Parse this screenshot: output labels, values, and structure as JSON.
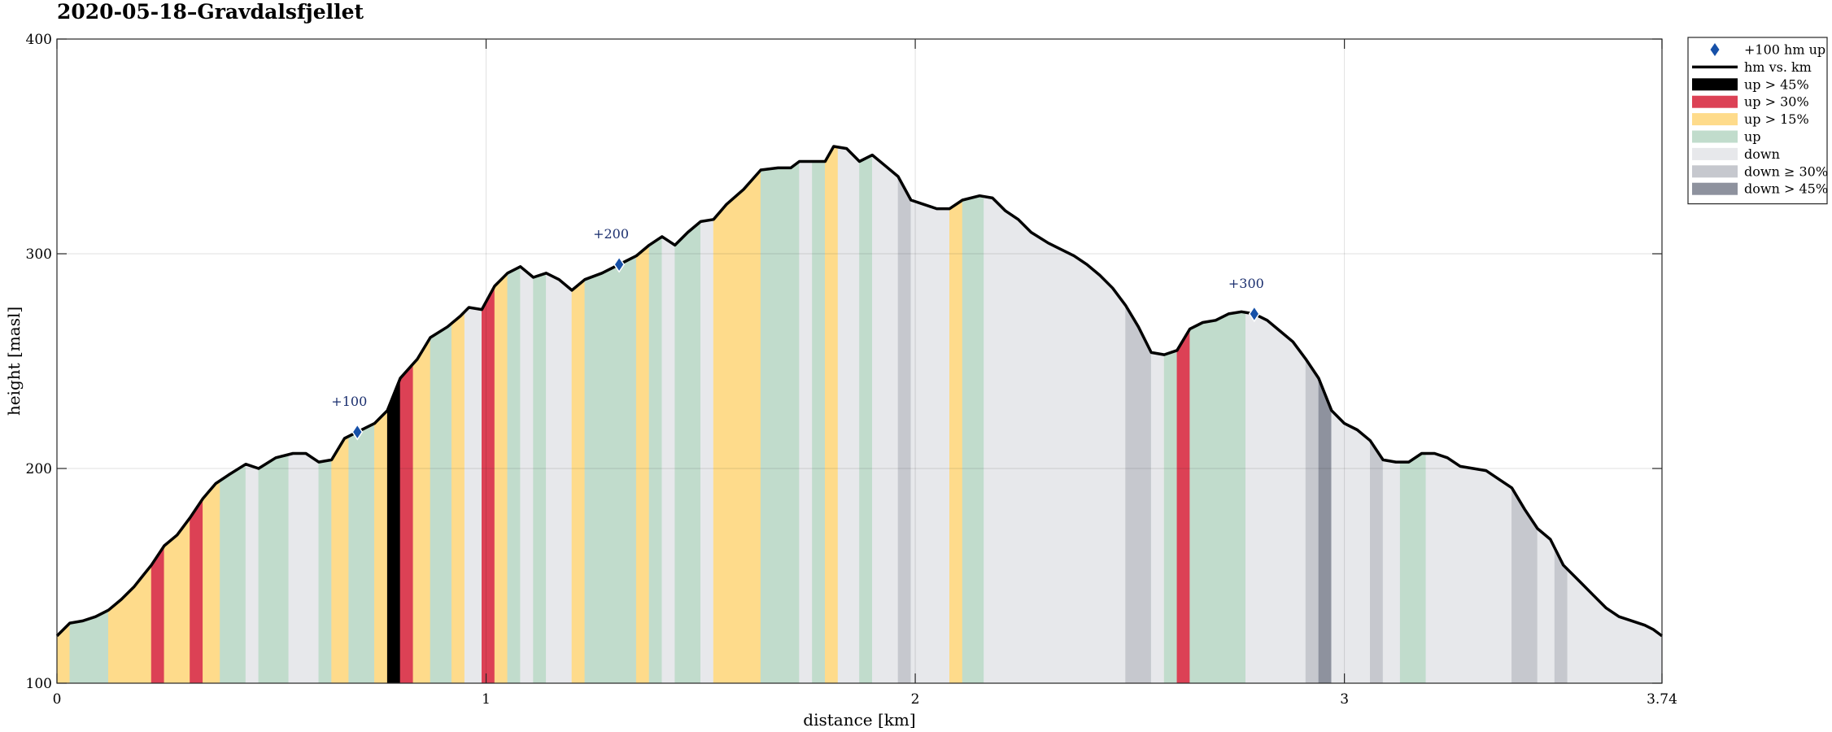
{
  "chart_data": {
    "type": "area",
    "title": "2020-05-18–Gravdalsfjellet",
    "xlabel": "distance [km]",
    "ylabel": "height [masl]",
    "xlim": [
      0,
      3.74
    ],
    "ylim": [
      100,
      400
    ],
    "x_ticks": [
      0,
      1,
      2,
      3,
      3.74
    ],
    "x_tick_labels": [
      "0",
      "1",
      "2",
      "3",
      "3.74"
    ],
    "y_ticks": [
      100,
      200,
      300,
      400
    ],
    "y_tick_labels": [
      "100",
      "200",
      "300",
      "400"
    ],
    "grid": true,
    "legend_position": "outside-top-right",
    "colors": {
      "up_gt45": "#000000",
      "up_gt30": "#dc4155",
      "up_gt15": "#fedb8b",
      "up": "#c1dccc",
      "down": "#e7e8eb",
      "down_ge30": "#c6c8ce",
      "down_gt45": "#8e929e",
      "line": "#000000",
      "marker": "#1650a8"
    },
    "legend": [
      {
        "key": "marker",
        "label": "+100 hm up"
      },
      {
        "key": "line",
        "label": "hm vs. km"
      },
      {
        "key": "up_gt45",
        "label": "up > 45%"
      },
      {
        "key": "up_gt30",
        "label": "up > 30%"
      },
      {
        "key": "up_gt15",
        "label": "up > 15%"
      },
      {
        "key": "up",
        "label": "up"
      },
      {
        "key": "down",
        "label": "down"
      },
      {
        "key": "down_ge30",
        "label": "down ≥ 30%"
      },
      {
        "key": "down_gt45",
        "label": "down > 45%"
      }
    ],
    "profile": [
      [
        0,
        122
      ],
      [
        0.03,
        128
      ],
      [
        0.06,
        129
      ],
      [
        0.09,
        131
      ],
      [
        0.12,
        134
      ],
      [
        0.15,
        139
      ],
      [
        0.18,
        145
      ],
      [
        0.2,
        150
      ],
      [
        0.22,
        155
      ],
      [
        0.25,
        164
      ],
      [
        0.28,
        169
      ],
      [
        0.31,
        177
      ],
      [
        0.34,
        186
      ],
      [
        0.37,
        193
      ],
      [
        0.4,
        197
      ],
      [
        0.44,
        202
      ],
      [
        0.47,
        200
      ],
      [
        0.51,
        205
      ],
      [
        0.55,
        207
      ],
      [
        0.58,
        207
      ],
      [
        0.61,
        203
      ],
      [
        0.64,
        204
      ],
      [
        0.67,
        214
      ],
      [
        0.7,
        217
      ],
      [
        0.74,
        221
      ],
      [
        0.77,
        227
      ],
      [
        0.8,
        242
      ],
      [
        0.84,
        251
      ],
      [
        0.87,
        261
      ],
      [
        0.91,
        266
      ],
      [
        0.94,
        271
      ],
      [
        0.96,
        275
      ],
      [
        0.99,
        274
      ],
      [
        1.02,
        285
      ],
      [
        1.05,
        291
      ],
      [
        1.08,
        294
      ],
      [
        1.11,
        289
      ],
      [
        1.14,
        291
      ],
      [
        1.17,
        288
      ],
      [
        1.2,
        283
      ],
      [
        1.23,
        288
      ],
      [
        1.27,
        291
      ],
      [
        1.31,
        295
      ],
      [
        1.35,
        299
      ],
      [
        1.38,
        304
      ],
      [
        1.41,
        308
      ],
      [
        1.44,
        304
      ],
      [
        1.47,
        310
      ],
      [
        1.5,
        315
      ],
      [
        1.53,
        316
      ],
      [
        1.56,
        323
      ],
      [
        1.6,
        330
      ],
      [
        1.64,
        339
      ],
      [
        1.68,
        340
      ],
      [
        1.71,
        340
      ],
      [
        1.73,
        343
      ],
      [
        1.76,
        343
      ],
      [
        1.79,
        343
      ],
      [
        1.81,
        350
      ],
      [
        1.84,
        349
      ],
      [
        1.87,
        343
      ],
      [
        1.9,
        346
      ],
      [
        1.93,
        341
      ],
      [
        1.96,
        336
      ],
      [
        1.99,
        325
      ],
      [
        2.02,
        323
      ],
      [
        2.05,
        321
      ],
      [
        2.08,
        321
      ],
      [
        2.11,
        325
      ],
      [
        2.15,
        327
      ],
      [
        2.18,
        326
      ],
      [
        2.21,
        320
      ],
      [
        2.24,
        316
      ],
      [
        2.27,
        310
      ],
      [
        2.31,
        305
      ],
      [
        2.34,
        302
      ],
      [
        2.37,
        299
      ],
      [
        2.4,
        295
      ],
      [
        2.43,
        290
      ],
      [
        2.46,
        284
      ],
      [
        2.49,
        276
      ],
      [
        2.52,
        266
      ],
      [
        2.55,
        254
      ],
      [
        2.58,
        253
      ],
      [
        2.61,
        255
      ],
      [
        2.64,
        265
      ],
      [
        2.67,
        268
      ],
      [
        2.7,
        269
      ],
      [
        2.73,
        272
      ],
      [
        2.76,
        273
      ],
      [
        2.79,
        272
      ],
      [
        2.82,
        269
      ],
      [
        2.85,
        264
      ],
      [
        2.88,
        259
      ],
      [
        2.91,
        251
      ],
      [
        2.94,
        242
      ],
      [
        2.97,
        227
      ],
      [
        3.0,
        221
      ],
      [
        3.03,
        218
      ],
      [
        3.06,
        213
      ],
      [
        3.09,
        204
      ],
      [
        3.12,
        203
      ],
      [
        3.15,
        203
      ],
      [
        3.18,
        207
      ],
      [
        3.21,
        207
      ],
      [
        3.24,
        205
      ],
      [
        3.27,
        201
      ],
      [
        3.3,
        200
      ],
      [
        3.33,
        199
      ],
      [
        3.36,
        195
      ],
      [
        3.39,
        191
      ],
      [
        3.42,
        181
      ],
      [
        3.45,
        172
      ],
      [
        3.48,
        167
      ],
      [
        3.51,
        155
      ],
      [
        3.55,
        147
      ],
      [
        3.58,
        141
      ],
      [
        3.61,
        135
      ],
      [
        3.64,
        131
      ],
      [
        3.67,
        129
      ],
      [
        3.7,
        127
      ],
      [
        3.72,
        125
      ],
      [
        3.74,
        122
      ]
    ],
    "segments": [
      [
        0,
        0.03,
        "up_gt15"
      ],
      [
        0.03,
        0.12,
        "up"
      ],
      [
        0.12,
        0.22,
        "up_gt15"
      ],
      [
        0.22,
        0.25,
        "up_gt30"
      ],
      [
        0.25,
        0.31,
        "up_gt15"
      ],
      [
        0.31,
        0.34,
        "up_gt30"
      ],
      [
        0.34,
        0.38,
        "up_gt15"
      ],
      [
        0.38,
        0.44,
        "up"
      ],
      [
        0.44,
        0.47,
        "down"
      ],
      [
        0.47,
        0.54,
        "up"
      ],
      [
        0.54,
        0.61,
        "down"
      ],
      [
        0.61,
        0.64,
        "up"
      ],
      [
        0.64,
        0.68,
        "up_gt15"
      ],
      [
        0.68,
        0.74,
        "up"
      ],
      [
        0.74,
        0.77,
        "up_gt15"
      ],
      [
        0.77,
        0.8,
        "up_gt45"
      ],
      [
        0.8,
        0.83,
        "up_gt30"
      ],
      [
        0.83,
        0.87,
        "up_gt15"
      ],
      [
        0.87,
        0.92,
        "up"
      ],
      [
        0.92,
        0.95,
        "up_gt15"
      ],
      [
        0.95,
        0.99,
        "down"
      ],
      [
        0.99,
        1.02,
        "up_gt30"
      ],
      [
        1.02,
        1.05,
        "up_gt15"
      ],
      [
        1.05,
        1.08,
        "up"
      ],
      [
        1.08,
        1.11,
        "down"
      ],
      [
        1.11,
        1.14,
        "up"
      ],
      [
        1.14,
        1.2,
        "down"
      ],
      [
        1.2,
        1.23,
        "up_gt15"
      ],
      [
        1.23,
        1.35,
        "up"
      ],
      [
        1.35,
        1.38,
        "up_gt15"
      ],
      [
        1.38,
        1.41,
        "up"
      ],
      [
        1.41,
        1.44,
        "down"
      ],
      [
        1.44,
        1.5,
        "up"
      ],
      [
        1.5,
        1.53,
        "down"
      ],
      [
        1.53,
        1.64,
        "up_gt15"
      ],
      [
        1.64,
        1.73,
        "up"
      ],
      [
        1.73,
        1.76,
        "down"
      ],
      [
        1.76,
        1.79,
        "up"
      ],
      [
        1.79,
        1.82,
        "up_gt15"
      ],
      [
        1.82,
        1.87,
        "down"
      ],
      [
        1.87,
        1.9,
        "up"
      ],
      [
        1.9,
        1.96,
        "down"
      ],
      [
        1.96,
        1.99,
        "down_ge30"
      ],
      [
        1.99,
        2.08,
        "down"
      ],
      [
        2.08,
        2.11,
        "up_gt15"
      ],
      [
        2.11,
        2.16,
        "up"
      ],
      [
        2.16,
        2.49,
        "down"
      ],
      [
        2.49,
        2.55,
        "down_ge30"
      ],
      [
        2.55,
        2.58,
        "down"
      ],
      [
        2.58,
        2.61,
        "up"
      ],
      [
        2.61,
        2.64,
        "up_gt30"
      ],
      [
        2.64,
        2.77,
        "up"
      ],
      [
        2.77,
        2.91,
        "down"
      ],
      [
        2.91,
        2.94,
        "down_ge30"
      ],
      [
        2.94,
        2.97,
        "down_gt45"
      ],
      [
        2.97,
        3.06,
        "down"
      ],
      [
        3.06,
        3.09,
        "down_ge30"
      ],
      [
        3.09,
        3.13,
        "down"
      ],
      [
        3.13,
        3.19,
        "up"
      ],
      [
        3.19,
        3.39,
        "down"
      ],
      [
        3.39,
        3.45,
        "down_ge30"
      ],
      [
        3.45,
        3.49,
        "down"
      ],
      [
        3.49,
        3.52,
        "down_ge30"
      ],
      [
        3.52,
        3.74,
        "down"
      ]
    ],
    "annotations": [
      {
        "label": "+100",
        "x": 0.7,
        "y": 217
      },
      {
        "label": "+200",
        "x": 1.31,
        "y": 295
      },
      {
        "label": "+300",
        "x": 2.79,
        "y": 272
      }
    ]
  }
}
